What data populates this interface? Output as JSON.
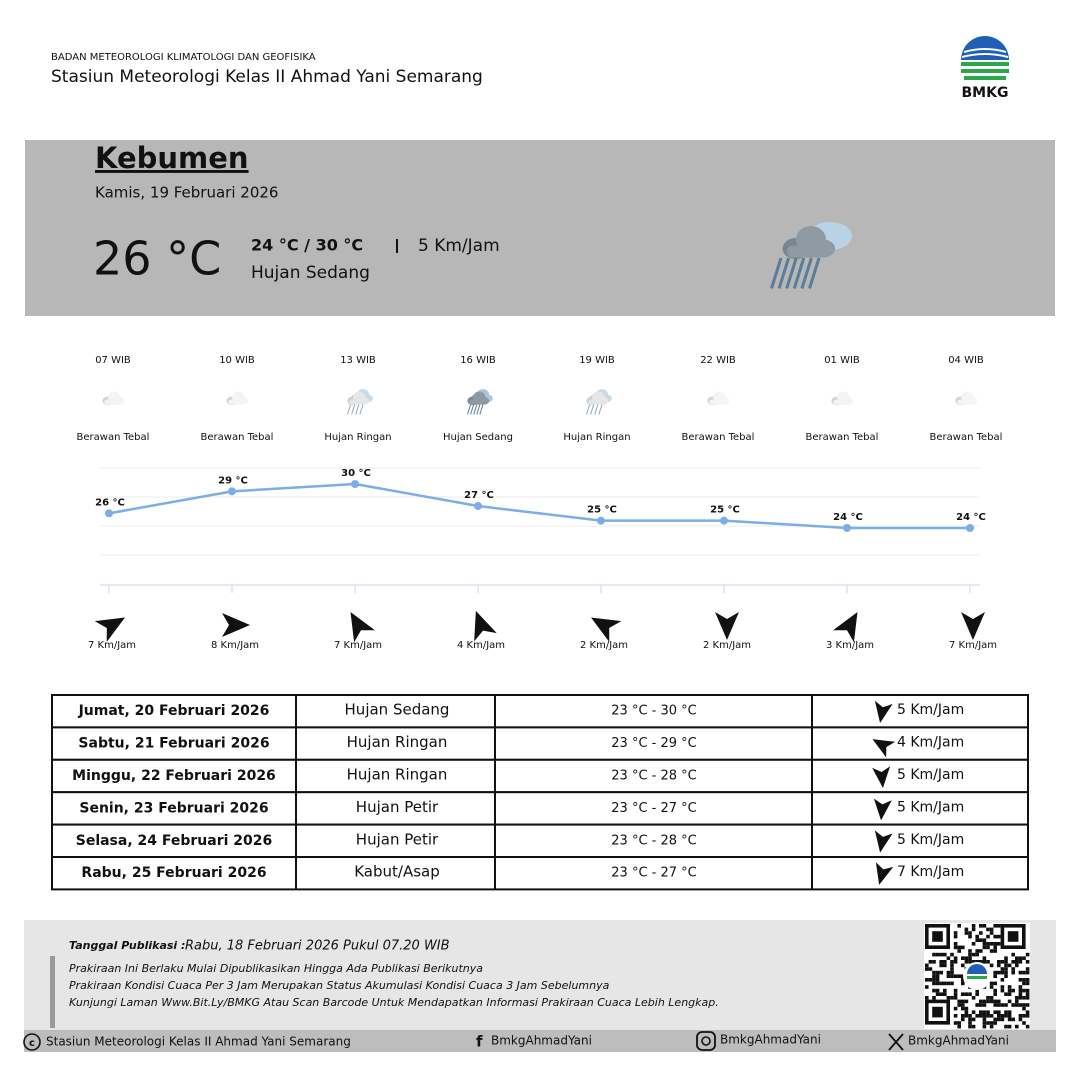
{
  "header": {
    "agency": "BADAN METEOROLOGI KLIMATOLOGI DAN GEOFISIKA",
    "station": "Stasiun Meteorologi Kelas II Ahmad Yani Semarang",
    "logo_text": "BMKG"
  },
  "current": {
    "city": "Kebumen",
    "date": "Kamis, 19 Februari 2026",
    "temperature": "26 °C",
    "range": "24 °C / 30 °C",
    "wind": "5 Km/Jam",
    "condition": "Hujan Sedang"
  },
  "hourly": {
    "times": [
      "07 WIB",
      "10 WIB",
      "13 WIB",
      "16 WIB",
      "19 WIB",
      "22 WIB",
      "01 WIB",
      "04 WIB"
    ],
    "conditions": [
      "Berawan Tebal",
      "Berawan Tebal",
      "Hujan Ringan",
      "Hujan Sedang",
      "Hujan Ringan",
      "Berawan Tebal",
      "Berawan Tebal",
      "Berawan Tebal"
    ],
    "temps": [
      26,
      29,
      30,
      27,
      25,
      25,
      24,
      24
    ],
    "value_labels": [
      "26 °C",
      "29 °C",
      "30 °C",
      "27 °C",
      "25 °C",
      "25 °C",
      "24 °C",
      "24 °C"
    ],
    "color": "#7aaee6",
    "wind_direction_deg": [
      60,
      90,
      330,
      340,
      300,
      180,
      30,
      180
    ],
    "winds": [
      "7 Km/Jam",
      "8 Km/Jam",
      "7 Km/Jam",
      "4 Km/Jam",
      "2 Km/Jam",
      "2 Km/Jam",
      "3 Km/Jam",
      "7 Km/Jam"
    ]
  },
  "daily": {
    "rows": [
      [
        "Jumat, 20 Februari 2026",
        "Hujan Sedang",
        "23 °C - 30 °C",
        "5 Km/Jam"
      ],
      [
        "Sabtu, 21 Februari 2026",
        "Hujan Ringan",
        "23 °C - 29 °C",
        "4 Km/Jam"
      ],
      [
        "Minggu, 22 Februari 2026",
        "Hujan Ringan",
        "23 °C - 28 °C",
        "5 Km/Jam"
      ],
      [
        "Senin, 23 Februari 2026",
        "Hujan Petir",
        "23 °C - 27 °C",
        "5 Km/Jam"
      ],
      [
        "Selasa, 24 Februari 2026",
        "Hujan Petir",
        "23 °C - 28 °C",
        "5 Km/Jam"
      ],
      [
        "Rabu, 25 Februari 2026",
        "Kabut/Asap",
        "23 °C - 27 °C",
        "7 Km/Jam"
      ]
    ],
    "wind_direction_deg": [
      190,
      300,
      175,
      185,
      190,
      195
    ]
  },
  "footer": {
    "publication_label": "Tanggal Publikasi :",
    "publication_date": "Rabu, 18 Februari 2026 Pukul 07.20 WIB",
    "notes": [
      "Prakiraan Ini Berlaku Mulai Dipublikasikan Hingga Ada Publikasi Berikutnya",
      "Prakiraan Kondisi Cuaca Per 3 Jam Merupakan Status Akumulasi Kondisi Cuaca 3 Jam Sebelumnya",
      "Kunjungi Laman Www.Bit.Ly/BMKG Atau Scan Barcode Untuk Mendapatkan Informasi Prakiraan Cuaca Lebih Lengkap."
    ],
    "copyright": "Stasiun Meteorologi Kelas II Ahmad Yani Semarang",
    "facebook": "BmkgAhmadYani",
    "instagram": "BmkgAhmadYani",
    "x": "BmkgAhmadYani"
  }
}
